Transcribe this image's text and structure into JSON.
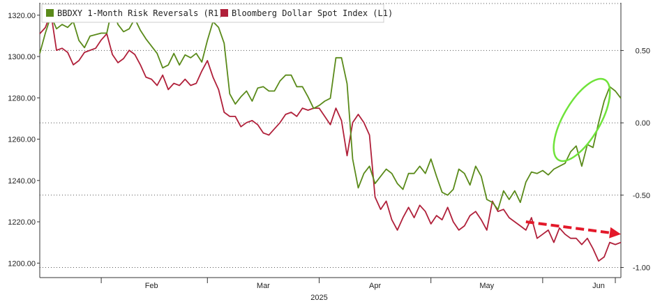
{
  "chart_data": {
    "type": "line",
    "legend": {
      "placement": "top-left",
      "entries": [
        {
          "label": "BBDXY 1-Month Risk Reversals (R1)",
          "color": "#5a8a1a"
        },
        {
          "label": "Bloomberg Dollar Spot Index  (L1)",
          "color": "#b0203a"
        }
      ]
    },
    "left_axis": {
      "ylim": [
        1193,
        1326
      ],
      "ticks": [
        "1200.00",
        "1220.00",
        "1240.00",
        "1260.00",
        "1280.00",
        "1300.00",
        "1320.00"
      ]
    },
    "right_axis": {
      "ylim": [
        -1.07,
        0.83
      ],
      "ticks": [
        "0.50",
        "0.00",
        "-0.50",
        "-1.00"
      ]
    },
    "x_axis": {
      "xlim": [
        0,
        104
      ],
      "year_label": "2025",
      "months": [
        {
          "label": "Feb",
          "x": 20
        },
        {
          "label": "Mar",
          "x": 40
        },
        {
          "label": "Apr",
          "x": 60
        },
        {
          "label": "May",
          "x": 80
        },
        {
          "label": "Jun",
          "x": 100
        }
      ],
      "separators": [
        11,
        30,
        50,
        70,
        90,
        103
      ]
    },
    "grid": "dotted",
    "series": [
      {
        "name": "BBDXY 1-Month Risk Reversals (R1)",
        "axis": "right",
        "color": "#5a8a1a",
        "x": [
          0,
          1,
          2,
          3,
          4,
          5,
          6,
          7,
          8,
          9,
          10,
          11,
          12,
          13,
          14,
          15,
          16,
          17,
          18,
          19,
          20,
          21,
          22,
          23,
          24,
          25,
          26,
          27,
          28,
          29,
          30,
          31,
          32,
          33,
          34,
          35,
          36,
          37,
          38,
          39,
          40,
          41,
          42,
          43,
          44,
          45,
          46,
          47,
          48,
          49,
          50,
          51,
          52,
          53,
          54,
          55,
          56,
          57,
          58,
          59,
          60,
          61,
          62,
          63,
          64,
          65,
          66,
          67,
          68,
          69,
          70,
          71,
          72,
          73,
          74,
          75,
          76,
          77,
          78,
          79,
          80,
          81,
          82,
          83,
          84,
          85,
          86,
          87,
          88,
          89,
          90,
          91,
          92,
          93,
          94,
          95,
          96,
          97,
          98,
          99,
          100,
          101,
          102,
          103,
          104
        ],
        "y": [
          0.48,
          0.62,
          0.74,
          0.65,
          0.68,
          0.66,
          0.7,
          0.57,
          0.52,
          0.6,
          0.61,
          0.62,
          0.62,
          0.8,
          0.68,
          0.63,
          0.65,
          0.72,
          0.64,
          0.58,
          0.53,
          0.48,
          0.38,
          0.4,
          0.48,
          0.4,
          0.47,
          0.45,
          0.48,
          0.42,
          0.57,
          0.7,
          0.66,
          0.55,
          0.2,
          0.13,
          0.18,
          0.22,
          0.15,
          0.24,
          0.25,
          0.22,
          0.22,
          0.29,
          0.33,
          0.33,
          0.25,
          0.25,
          0.18,
          0.1,
          0.12,
          0.15,
          0.17,
          0.45,
          0.45,
          0.27,
          -0.25,
          -0.45,
          -0.35,
          -0.3,
          -0.42,
          -0.37,
          -0.32,
          -0.35,
          -0.42,
          -0.46,
          -0.35,
          -0.35,
          -0.3,
          -0.35,
          -0.25,
          -0.37,
          -0.48,
          -0.5,
          -0.46,
          -0.32,
          -0.35,
          -0.43,
          -0.3,
          -0.37,
          -0.53,
          -0.55,
          -0.6,
          -0.47,
          -0.53,
          -0.47,
          -0.55,
          -0.41,
          -0.34,
          -0.35,
          -0.33,
          -0.36,
          -0.32,
          -0.3,
          -0.28,
          -0.2,
          -0.16,
          -0.3,
          -0.15,
          -0.17,
          0.0,
          0.15,
          0.25,
          0.22,
          0.17
        ]
      },
      {
        "name": "Bloomberg Dollar Spot Index  (L1)",
        "axis": "left",
        "color": "#b0203a",
        "x": [
          0,
          1,
          2,
          3,
          4,
          5,
          6,
          7,
          8,
          9,
          10,
          11,
          12,
          13,
          14,
          15,
          16,
          17,
          18,
          19,
          20,
          21,
          22,
          23,
          24,
          25,
          26,
          27,
          28,
          29,
          30,
          31,
          32,
          33,
          34,
          35,
          36,
          37,
          38,
          39,
          40,
          41,
          42,
          43,
          44,
          45,
          46,
          47,
          48,
          49,
          50,
          51,
          52,
          53,
          54,
          55,
          56,
          57,
          58,
          59,
          60,
          61,
          62,
          63,
          64,
          65,
          66,
          67,
          68,
          69,
          70,
          71,
          72,
          73,
          74,
          75,
          76,
          77,
          78,
          79,
          80,
          81,
          82,
          83,
          84,
          85,
          86,
          87,
          88,
          89,
          90,
          91,
          92,
          93,
          94,
          95,
          96,
          97,
          98,
          99,
          100,
          101,
          102,
          103,
          104
        ],
        "y": [
          1311,
          1314,
          1321,
          1303,
          1304,
          1302,
          1296,
          1298,
          1302,
          1303,
          1304,
          1308,
          1311,
          1301,
          1297,
          1299,
          1303,
          1301,
          1296,
          1290,
          1289,
          1286,
          1291,
          1284,
          1287,
          1286,
          1289,
          1286,
          1287,
          1293,
          1298,
          1290,
          1284,
          1273,
          1271,
          1271,
          1266,
          1268,
          1269,
          1267,
          1263,
          1262,
          1265,
          1268,
          1272,
          1273,
          1271,
          1275,
          1274,
          1275,
          1275,
          1271,
          1267,
          1275,
          1269,
          1252,
          1268,
          1272,
          1268,
          1262,
          1232,
          1226,
          1230,
          1221,
          1216,
          1222,
          1227,
          1222,
          1228,
          1225,
          1219,
          1223,
          1221,
          1227,
          1220,
          1216,
          1218,
          1223,
          1225,
          1221,
          1216,
          1230,
          1225,
          1226,
          1222,
          1220,
          1218,
          1216,
          1222,
          1212,
          1214,
          1216,
          1210,
          1217,
          1214,
          1212,
          1212,
          1209,
          1212,
          1207,
          1201,
          1203,
          1210,
          1209,
          1210
        ]
      }
    ],
    "annotations": [
      {
        "type": "ellipse",
        "color": "#6fe33a",
        "center": [
          97,
          0.02
        ],
        "radius": [
          3.3,
          0.32
        ],
        "rotate_deg": 30
      },
      {
        "type": "dashed-arrow",
        "color": "#e3192a",
        "from": [
          87,
          1220
        ],
        "to": [
          104,
          1214
        ]
      }
    ]
  }
}
